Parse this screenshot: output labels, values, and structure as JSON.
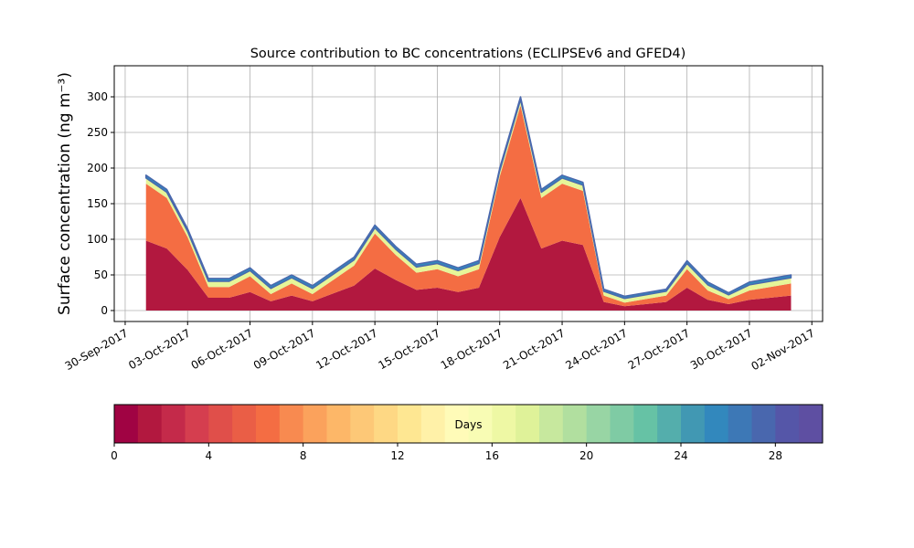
{
  "chart_data": {
    "type": "stacked-area",
    "title": "Source contribution to BC concentrations (ECLIPSEv6 and GFED4)",
    "y_label": "Surface concentration (ng m⁻³)",
    "x": [
      "2017-10-01",
      "2017-10-02",
      "2017-10-03",
      "2017-10-04",
      "2017-10-05",
      "2017-10-06",
      "2017-10-07",
      "2017-10-08",
      "2017-10-09",
      "2017-10-10",
      "2017-10-11",
      "2017-10-12",
      "2017-10-13",
      "2017-10-14",
      "2017-10-15",
      "2017-10-16",
      "2017-10-17",
      "2017-10-18",
      "2017-10-19",
      "2017-10-20",
      "2017-10-21",
      "2017-10-22",
      "2017-10-23",
      "2017-10-24",
      "2017-10-25",
      "2017-10-26",
      "2017-10-27",
      "2017-10-28",
      "2017-10-29",
      "2017-10-30",
      "2017-10-31",
      "2017-11-01"
    ],
    "series": [
      {
        "color": "#b2183f",
        "values": [
          98,
          87,
          57,
          18,
          18,
          26,
          13,
          21,
          13,
          24,
          35,
          59,
          43,
          29,
          32,
          26,
          32,
          103,
          158,
          87,
          98,
          92,
          12,
          6,
          9,
          12,
          32,
          15,
          9,
          15,
          18,
          21
        ]
      },
      {
        "color": "#f46d43",
        "values": [
          80,
          71,
          46,
          15,
          15,
          22,
          10,
          17,
          10,
          19,
          28,
          49,
          35,
          24,
          26,
          22,
          26,
          85,
          130,
          71,
          80,
          76,
          9,
          5,
          7,
          9,
          26,
          13,
          7,
          13,
          15,
          17
        ]
      },
      {
        "color": "#e6f598",
        "values": [
          8,
          8,
          8,
          8,
          8,
          8,
          8,
          8,
          8,
          8,
          8,
          8,
          8,
          8,
          8,
          8,
          8,
          8,
          8,
          8,
          8,
          8,
          6,
          6,
          6,
          6,
          8,
          8,
          6,
          8,
          8,
          8
        ]
      },
      {
        "color": "#3288bd",
        "values": [
          4,
          4,
          4,
          4,
          4,
          4,
          4,
          4,
          4,
          4,
          4,
          4,
          4,
          4,
          4,
          4,
          4,
          4,
          4,
          4,
          4,
          4,
          3,
          3,
          3,
          3,
          4,
          4,
          3,
          4,
          4,
          4
        ]
      }
    ],
    "xlim": [
      "2017-09-29T11:24Z",
      "2017-11-02T12:24Z"
    ],
    "xticks": [
      {
        "value": "2017-09-30",
        "label": "30-Sep-2017"
      },
      {
        "value": "2017-10-03",
        "label": "03-Oct-2017"
      },
      {
        "value": "2017-10-06",
        "label": "06-Oct-2017"
      },
      {
        "value": "2017-10-09",
        "label": "09-Oct-2017"
      },
      {
        "value": "2017-10-12",
        "label": "12-Oct-2017"
      },
      {
        "value": "2017-10-15",
        "label": "15-Oct-2017"
      },
      {
        "value": "2017-10-18",
        "label": "18-Oct-2017"
      },
      {
        "value": "2017-10-21",
        "label": "21-Oct-2017"
      },
      {
        "value": "2017-10-24",
        "label": "24-Oct-2017"
      },
      {
        "value": "2017-10-27",
        "label": "27-Oct-2017"
      },
      {
        "value": "2017-10-30",
        "label": "30-Oct-2017"
      },
      {
        "value": "2017-11-02",
        "label": "02-Nov-2017"
      }
    ],
    "ylim": [
      -15.4,
      343.6
    ],
    "yticks": [
      0,
      50,
      100,
      150,
      200,
      250,
      300
    ],
    "grid": true,
    "colorbar": {
      "label": "Days",
      "lim": [
        0,
        30
      ],
      "ticks": [
        0,
        4,
        8,
        12,
        16,
        20,
        24,
        28
      ],
      "colors": [
        "#a00343",
        "#b2183f",
        "#c42a4a",
        "#d53e4f",
        "#e04f4a",
        "#ea5e46",
        "#f46d43",
        "#f88a50",
        "#fba25c",
        "#fdb768",
        "#fdc877",
        "#fed884",
        "#fee792",
        "#fff1a8",
        "#fffbb8",
        "#f8fcb4",
        "#eef8a4",
        "#dff299",
        "#c7e89e",
        "#b1df9f",
        "#98d5a4",
        "#7fcba4",
        "#66c2a5",
        "#54aeac",
        "#4198b3",
        "#3288bd",
        "#3d78b6",
        "#4967ae",
        "#5556a8",
        "#5e4fa2"
      ]
    }
  }
}
